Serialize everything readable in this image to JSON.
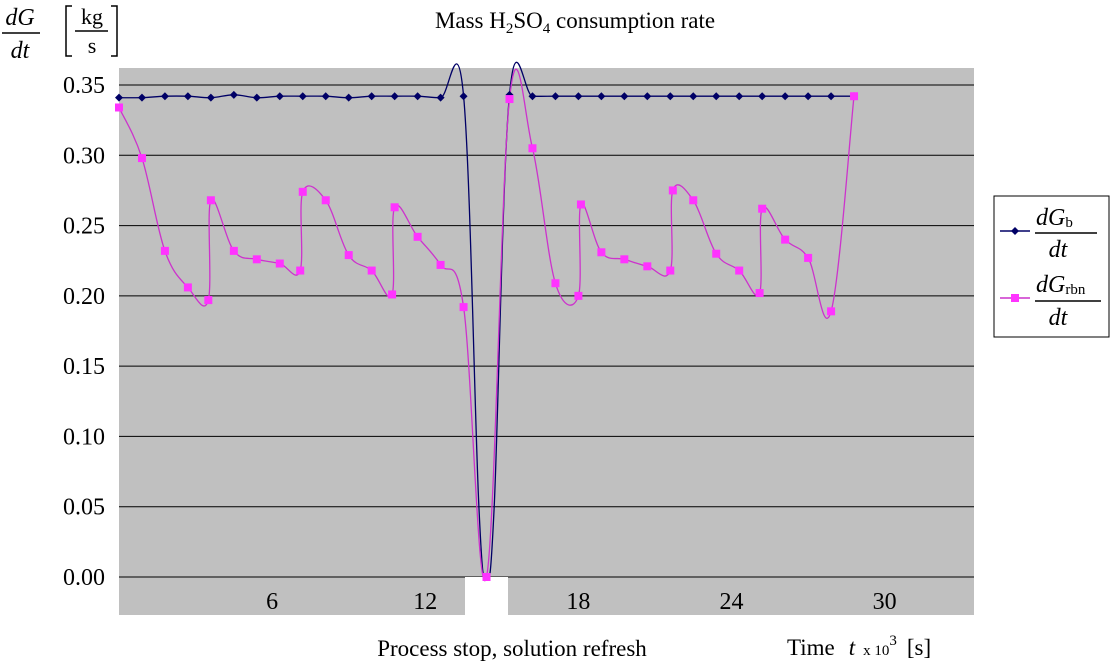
{
  "chart_data": {
    "type": "line",
    "title": "Mass H2SO4 consumption rate",
    "title_parts": {
      "before": "Mass H",
      "sub1": "2",
      "mid": "SO",
      "sub2": "4",
      "after": " consumption  rate"
    },
    "ylabel": {
      "numerator": "dG",
      "denominator": "dt",
      "unit_num": "kg",
      "unit_den": "s"
    },
    "xlabel": {
      "text": "Time",
      "var": "t",
      "times": "x 10",
      "exp": "3",
      "unit": "[s]"
    },
    "annotation": "Process stop, solution refresh",
    "ylim": [
      0,
      0.35
    ],
    "xlim": [
      0,
      33.5
    ],
    "yticks": [
      "0.00",
      "0.05",
      "0.10",
      "0.15",
      "0.20",
      "0.25",
      "0.30",
      "0.35"
    ],
    "xticks": [
      "6",
      "12",
      "18",
      "24",
      "30"
    ],
    "grid": "horizontal",
    "background": "#c0c0c0",
    "legend_position": "right",
    "series": [
      {
        "name": "dGb/dt",
        "legend": {
          "num": "dG",
          "sub": "b",
          "den": "dt"
        },
        "color": "#000066",
        "marker": "diamond",
        "x": [
          0,
          0.9,
          1.8,
          2.7,
          3.6,
          4.5,
          5.4,
          6.3,
          7.2,
          8.1,
          9,
          9.9,
          10.8,
          11.7,
          12.6,
          13.5,
          14.1,
          14.4,
          14.7,
          15.3,
          16.2,
          17.1,
          18,
          18.9,
          19.8,
          20.7,
          21.6,
          22.5,
          23.4,
          24.3,
          25.2,
          26.1,
          27,
          27.9,
          28.8
        ],
        "y": [
          0.341,
          0.341,
          0.342,
          0.342,
          0.341,
          0.343,
          0.341,
          0.342,
          0.342,
          0.342,
          0.341,
          0.342,
          0.342,
          0.342,
          0.341,
          0.342,
          0.05,
          0.0,
          0.05,
          0.343,
          0.342,
          0.342,
          0.342,
          0.342,
          0.342,
          0.342,
          0.342,
          0.342,
          0.342,
          0.342,
          0.342,
          0.342,
          0.342,
          0.342,
          0.342
        ],
        "markers": [
          0,
          1,
          2,
          3,
          4,
          5,
          6,
          7,
          8,
          9,
          10,
          11,
          12,
          13,
          14,
          15,
          19,
          20,
          21,
          22,
          23,
          24,
          25,
          26,
          27,
          28,
          29,
          30,
          31,
          32,
          33,
          34
        ]
      },
      {
        "name": "dGrbn/dt",
        "legend": {
          "num": "dG",
          "sub": "rbn",
          "den": "dt"
        },
        "color": "#cc33cc",
        "marker": "square",
        "x": [
          0,
          0.9,
          1.8,
          2.7,
          3.5,
          3.6,
          4.5,
          5.4,
          6.3,
          7.1,
          7.2,
          8.1,
          9,
          9.9,
          10.7,
          10.8,
          11.7,
          12.6,
          13.5,
          14.4,
          15.3,
          16.2,
          17.1,
          18,
          18.1,
          18.9,
          19.8,
          20.7,
          21.6,
          21.7,
          22.5,
          23.4,
          24.3,
          25.1,
          25.2,
          26.1,
          27,
          27.9,
          28.8
        ],
        "y": [
          0.334,
          0.298,
          0.232,
          0.206,
          0.197,
          0.268,
          0.232,
          0.226,
          0.223,
          0.218,
          0.274,
          0.268,
          0.229,
          0.218,
          0.201,
          0.263,
          0.242,
          0.222,
          0.192,
          0.0,
          0.34,
          0.305,
          0.209,
          0.2,
          0.265,
          0.231,
          0.226,
          0.221,
          0.218,
          0.275,
          0.268,
          0.23,
          0.218,
          0.202,
          0.262,
          0.24,
          0.227,
          0.189,
          0.342
        ]
      }
    ]
  }
}
